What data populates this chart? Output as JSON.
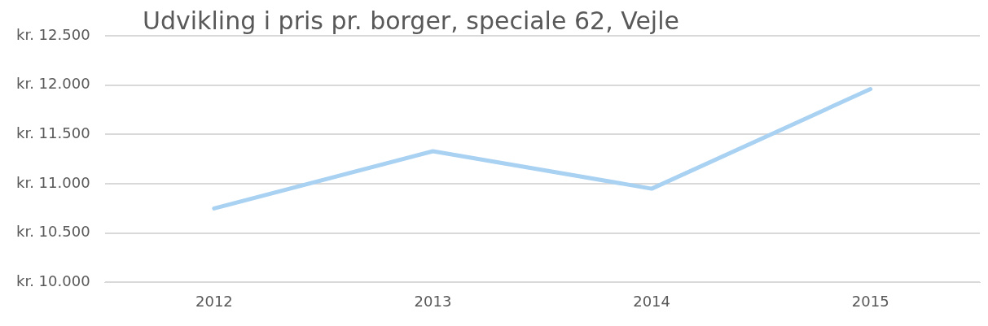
{
  "chart_data": {
    "type": "line",
    "title": "Udvikling i pris pr. borger, speciale 62, Vejle",
    "categories": [
      "2012",
      "2013",
      "2014",
      "2015"
    ],
    "series": [
      {
        "color": "#a9d1f2",
        "values": [
          10750,
          11330,
          10950,
          11960
        ]
      }
    ],
    "ylim": [
      10000,
      12500
    ],
    "yticks": [
      {
        "value": 10000,
        "label": "kr. 10.000"
      },
      {
        "value": 10500,
        "label": "kr. 10.500"
      },
      {
        "value": 11000,
        "label": "kr. 11.000"
      },
      {
        "value": 11500,
        "label": "kr. 11.500"
      },
      {
        "value": 12000,
        "label": "kr. 12.000"
      },
      {
        "value": 12500,
        "label": "kr. 12.500"
      }
    ],
    "grid": "y",
    "legend": false,
    "marker": "none",
    "line_style": "solid"
  }
}
